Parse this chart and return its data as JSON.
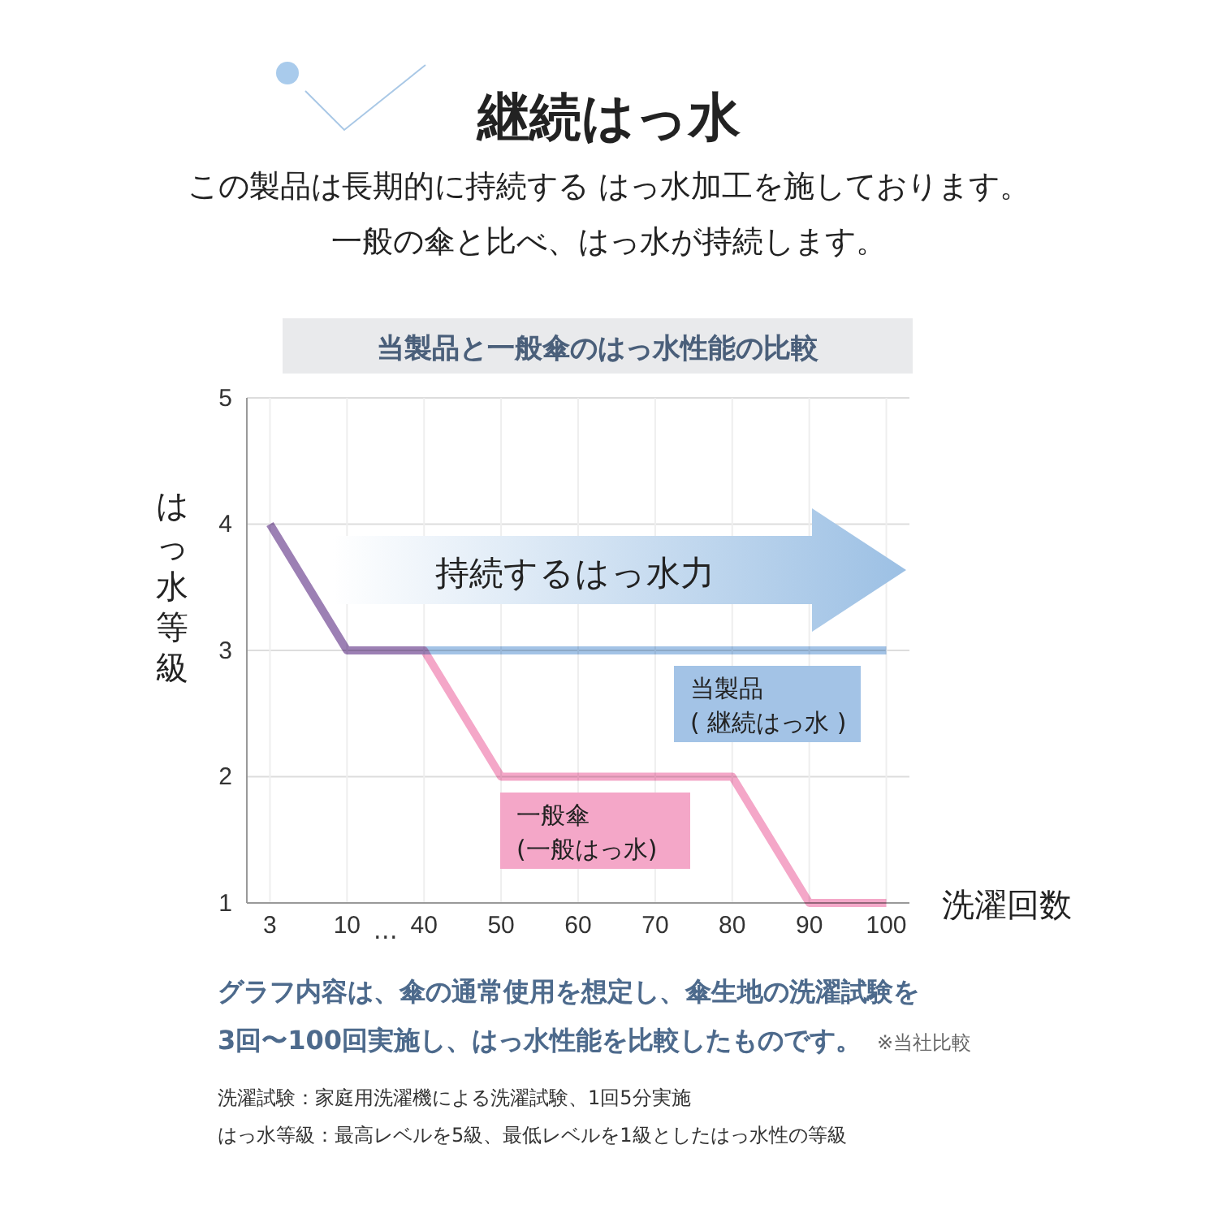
{
  "chart_data": {
    "type": "line",
    "title": "継続はっ水",
    "subtitle": "この製品は長期的に持続する はっ水加工を施しております。一般の傘と比べ、はっ水が持続します。",
    "xlabel": "洗濯回数",
    "ylabel": "はっ水等級",
    "categories": [
      "3",
      "10",
      "40",
      "50",
      "60",
      "70",
      "80",
      "90",
      "100"
    ],
    "series": [
      {
        "name": "一般傘\n(一般はっ水)",
        "color": "#f4a7c8",
        "values": [
          4,
          3,
          3,
          2,
          2,
          2,
          2,
          1,
          1
        ]
      },
      {
        "name": "当製品\n( 継続はっ水 )",
        "color": "#a3c3e6",
        "values": [
          4,
          3,
          3,
          3,
          3,
          3,
          3,
          3,
          3
        ]
      }
    ],
    "ylim": [
      1,
      5
    ],
    "yticks": [
      1,
      2,
      3,
      4,
      5
    ],
    "grid": true,
    "marker": "none",
    "line_style": "solid",
    "annotations": [
      "当製品と一般傘のはっ水性能の比較",
      "持続するはっ水力",
      "…",
      "グラフ内容は、傘の通常使用を想定し、傘生地の洗濯試験を",
      "3回〜100回実施し、はっ水性能を比較したものです。",
      "※当社比較",
      "洗濯試験：家庭用洗濯機による洗濯試験、1回5分実施",
      "はっ水等級：最高レベルを5級、最低レベルを1級としたはっ水性の等級"
    ]
  }
}
